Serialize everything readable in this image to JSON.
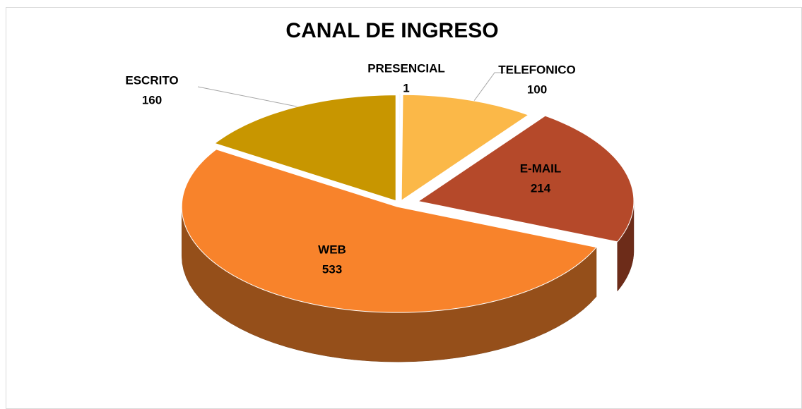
{
  "chart_data": {
    "type": "pie",
    "title": "CANAL DE INGRESO",
    "categories": [
      "PRESENCIAL",
      "TELEFONICO",
      "E-MAIL",
      "WEB",
      "ESCRITO"
    ],
    "values": [
      1,
      100,
      214,
      533,
      160
    ],
    "colors": [
      "#f2f2f2",
      "#fbb848",
      "#b5492a",
      "#f8832b",
      "#c89600"
    ]
  }
}
